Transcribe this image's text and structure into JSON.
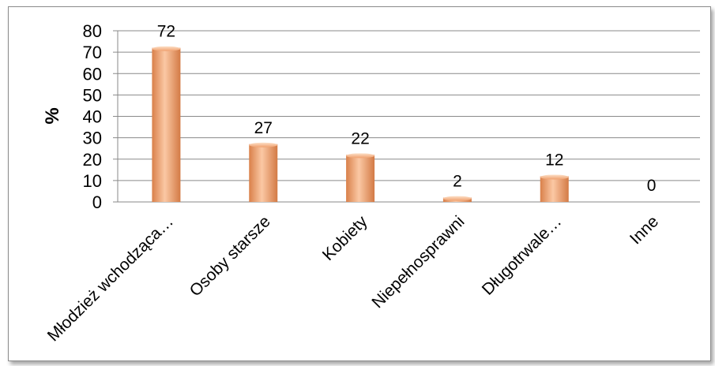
{
  "chart_data": {
    "type": "bar",
    "title": "",
    "xlabel": "",
    "ylabel": "%",
    "ylim": [
      0,
      80
    ],
    "yticks": [
      0,
      10,
      20,
      30,
      40,
      50,
      60,
      70,
      80
    ],
    "grid": true,
    "legend": "none",
    "categories": [
      "Młodzież wchodząca…",
      "Osoby starsze",
      "Kobiety",
      "Niepełnosprawni",
      "Długotrwale…",
      "Inne"
    ],
    "values": [
      72,
      27,
      22,
      2,
      12,
      0
    ],
    "data_labels": [
      "72",
      "27",
      "22",
      "2",
      "12",
      "0"
    ],
    "bar_color": "#f4a676"
  }
}
